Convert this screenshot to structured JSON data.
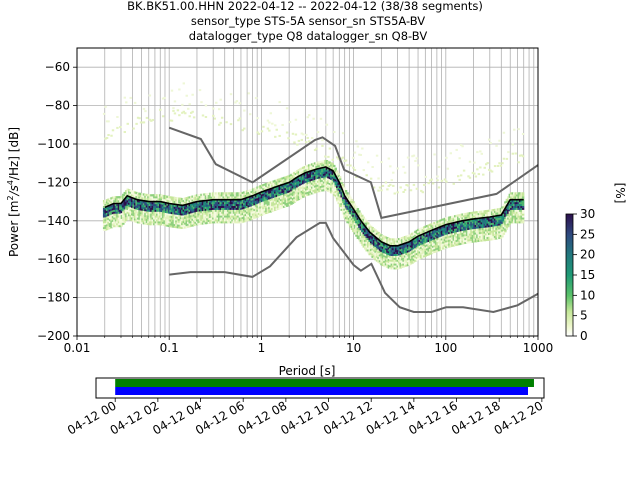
{
  "title": {
    "line1": "BK.BK51.00.HHN   2022-04-12 -- 2022-04-12  (38/38 segments)",
    "line2": "sensor_type STS-5A sensor_sn STS5A-BV",
    "line3": "datalogger_type Q8 datalogger_sn Q8-BV"
  },
  "chart_data": [
    {
      "type": "heatmap",
      "xlabel": "Period [s]",
      "ylabel": "Power [m²/s⁴/Hz] [dB]",
      "ylabel_parts": {
        "main": "Power [m",
        "sup1": "2",
        "mid": "/s",
        "sup2": "4",
        "tail": "/Hz] [dB]"
      },
      "xscale": "log",
      "xlim": [
        0.01,
        1000
      ],
      "ylim": [
        -200,
        -50
      ],
      "xticks": [
        0.01,
        0.1,
        1,
        10,
        100,
        1000
      ],
      "xtick_labels": [
        "0.01",
        "0.1",
        "1",
        "10",
        "100",
        "1000"
      ],
      "yticks": [
        -200,
        -180,
        -160,
        -140,
        -120,
        -100,
        -80,
        -60
      ],
      "ytick_labels": [
        "−200",
        "−180",
        "−160",
        "−140",
        "−120",
        "−100",
        "−80",
        "−60"
      ],
      "grid": true,
      "colorbar": {
        "label": "[%]",
        "range": [
          0,
          30
        ],
        "ticks": [
          0,
          5,
          10,
          15,
          20,
          25,
          30
        ],
        "tick_labels": [
          "0",
          "5",
          "10",
          "15",
          "20",
          "25",
          "30"
        ]
      },
      "series": [
        {
          "name": "",
          "kind": "mode",
          "color": "#000000",
          "points": [
            [
              0.02,
              -133
            ],
            [
              0.025,
              -131
            ],
            [
              0.03,
              -131
            ],
            [
              0.035,
              -127
            ],
            [
              0.045,
              -129
            ],
            [
              0.06,
              -130
            ],
            [
              0.08,
              -130
            ],
            [
              0.1,
              -131
            ],
            [
              0.14,
              -132
            ],
            [
              0.2,
              -130
            ],
            [
              0.3,
              -129
            ],
            [
              0.45,
              -129
            ],
            [
              0.6,
              -129
            ],
            [
              0.8,
              -127
            ],
            [
              1,
              -125
            ],
            [
              1.5,
              -122
            ],
            [
              2,
              -120
            ],
            [
              2.5,
              -117
            ],
            [
              3,
              -115
            ],
            [
              4,
              -113
            ],
            [
              5,
              -112
            ],
            [
              6,
              -114
            ],
            [
              7,
              -120
            ],
            [
              8,
              -127
            ],
            [
              10,
              -134
            ],
            [
              12,
              -140
            ],
            [
              15,
              -146
            ],
            [
              20,
              -151
            ],
            [
              25,
              -153
            ],
            [
              30,
              -153
            ],
            [
              40,
              -151
            ],
            [
              50,
              -148
            ],
            [
              70,
              -145
            ],
            [
              100,
              -142
            ],
            [
              150,
              -140
            ],
            [
              200,
              -139
            ],
            [
              300,
              -138
            ],
            [
              400,
              -137
            ],
            [
              500,
              -129
            ],
            [
              700,
              -129
            ]
          ]
        },
        {
          "name": "",
          "kind": "noise-model-high",
          "color": "#666666",
          "points": [
            [
              0.1,
              -91.5
            ],
            [
              0.22,
              -97.4
            ],
            [
              0.32,
              -110.5
            ],
            [
              0.8,
              -120
            ],
            [
              3.8,
              -97.9
            ],
            [
              4.6,
              -96.5
            ],
            [
              6.3,
              -101
            ],
            [
              7.9,
              -113.5
            ],
            [
              15.4,
              -120
            ],
            [
              20,
              -138.5
            ],
            [
              354.8,
              -126
            ],
            [
              1000,
              -111
            ]
          ]
        },
        {
          "name": "",
          "kind": "noise-model-low",
          "color": "#666666",
          "points": [
            [
              0.1,
              -168
            ],
            [
              0.17,
              -166.7
            ],
            [
              0.4,
              -166.7
            ],
            [
              0.8,
              -169.2
            ],
            [
              1.24,
              -163.7
            ],
            [
              2.4,
              -148.6
            ],
            [
              4.3,
              -141.1
            ],
            [
              5,
              -141.1
            ],
            [
              6,
              -149
            ],
            [
              10,
              -163
            ],
            [
              12,
              -166
            ],
            [
              15.6,
              -162.4
            ],
            [
              21.9,
              -177.5
            ],
            [
              31.6,
              -185
            ],
            [
              45,
              -187.5
            ],
            [
              70,
              -187.5
            ],
            [
              101,
              -185
            ],
            [
              154,
              -185
            ],
            [
              328,
              -187.5
            ],
            [
              600,
              -184
            ],
            [
              1000,
              -178
            ]
          ]
        },
        {
          "name": "",
          "kind": "density-upper-envelope",
          "points": [
            [
              0.02,
              -97
            ],
            [
              0.03,
              -92
            ],
            [
              0.05,
              -88
            ],
            [
              0.08,
              -85
            ],
            [
              0.12,
              -85
            ],
            [
              0.2,
              -86
            ],
            [
              0.4,
              -88
            ],
            [
              0.8,
              -91
            ],
            [
              1.5,
              -95
            ],
            [
              3,
              -99
            ],
            [
              5,
              -104
            ],
            [
              8,
              -110
            ],
            [
              12,
              -117
            ],
            [
              18,
              -122
            ],
            [
              30,
              -124
            ],
            [
              60,
              -122
            ],
            [
              120,
              -118
            ],
            [
              250,
              -114
            ],
            [
              500,
              -108
            ],
            [
              700,
              -107
            ]
          ]
        }
      ]
    },
    {
      "type": "timeline",
      "x_tick_labels": [
        "04-12 00",
        "04-12 02",
        "04-12 04",
        "04-12 06",
        "04-12 08",
        "04-12 10",
        "04-12 12",
        "04-12 14",
        "04-12 16",
        "04-12 18",
        "04-12 20"
      ],
      "x_hours": [
        0,
        2,
        4,
        6,
        8,
        10,
        12,
        14,
        16,
        18,
        20
      ],
      "xlim_hours": [
        -0.9,
        20.1
      ],
      "bars": [
        {
          "name": "",
          "color": "#008000",
          "start_hours": 0,
          "end_hours": 19.63
        },
        {
          "name": "",
          "color": "#0000ff",
          "start_hours": 0,
          "end_hours": 19.35
        }
      ]
    }
  ]
}
